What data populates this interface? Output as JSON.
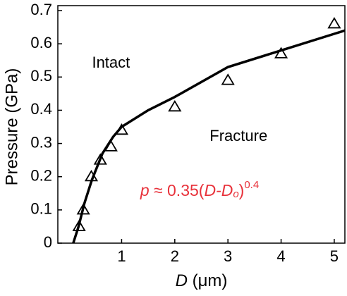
{
  "chart_data": {
    "type": "scatter",
    "x_label": [
      "D",
      " (μm)"
    ],
    "y_label": "Pressure (GPa)",
    "xlim": [
      -0.2,
      5.2
    ],
    "ylim": [
      0,
      0.7
    ],
    "xticks": [
      1,
      2,
      3,
      4,
      5
    ],
    "yticks": [
      0,
      0.1,
      0.2,
      0.3,
      0.4,
      0.5,
      0.6,
      0.7
    ],
    "series": [
      {
        "x": [
          0.2,
          0.28,
          0.43,
          0.6,
          0.8,
          1.0,
          2,
          3,
          4,
          5
        ],
        "values": [
          0.05,
          0.1,
          0.2,
          0.25,
          0.29,
          0.34,
          0.41,
          0.49,
          0.57,
          0.66
        ],
        "color": "#000000",
        "marker": "triangle"
      },
      {
        "x": [
          0.09,
          0.19,
          0.3,
          0.44,
          0.64,
          0.84,
          1.0,
          1.5,
          2,
          3,
          4,
          5,
          5.2
        ],
        "values": [
          0,
          0.05,
          0.12,
          0.19,
          0.27,
          0.32,
          0.35,
          0.4,
          0.44,
          0.53,
          0.58,
          0.63,
          0.64
        ],
        "color": "#000000",
        "marker": "line"
      }
    ],
    "annotations": [
      {
        "text": "Intact",
        "x": 0.8,
        "y": 0.54
      },
      {
        "text": "Fracture",
        "x": 3.2,
        "y": 0.32
      }
    ],
    "formula": {
      "parts": [
        "p",
        " ≈ 0.35(",
        "D-D",
        "o",
        ")",
        "0.4"
      ],
      "color": "#e8313a",
      "x": 1.35,
      "y": 0.155
    }
  }
}
